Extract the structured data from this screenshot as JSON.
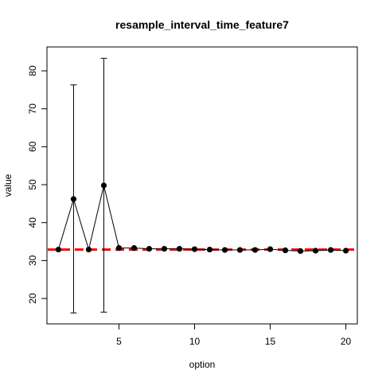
{
  "chart_data": {
    "type": "line",
    "title": "resample_interval_time_feature7",
    "xlabel": "option",
    "ylabel": "value",
    "xlim": [
      0.24,
      20.76
    ],
    "ylim": [
      13.3,
      86.3
    ],
    "x_ticks": [
      5,
      10,
      15,
      20
    ],
    "y_ticks": [
      20,
      30,
      40,
      50,
      60,
      70,
      80
    ],
    "grid": false,
    "series": [
      {
        "x": [
          1,
          2,
          3,
          4,
          5,
          6,
          7,
          8,
          9,
          10,
          11,
          12,
          13,
          14,
          15,
          16,
          17,
          18,
          19,
          20
        ],
        "y": [
          32.9,
          46.2,
          32.9,
          49.8,
          33.3,
          33.3,
          33.1,
          33.1,
          33.1,
          33.0,
          32.9,
          32.8,
          32.8,
          32.8,
          33.0,
          32.7,
          32.5,
          32.6,
          32.8,
          32.6
        ],
        "err_low": [
          null,
          16.2,
          null,
          16.4,
          null,
          null,
          null,
          null,
          null,
          null,
          null,
          null,
          null,
          null,
          null,
          null,
          null,
          null,
          null,
          null
        ],
        "err_high": [
          null,
          76.3,
          null,
          83.3,
          null,
          null,
          null,
          null,
          null,
          null,
          null,
          null,
          null,
          null,
          null,
          null,
          null,
          null,
          null,
          null
        ],
        "color": "#000000"
      }
    ],
    "reference_line": {
      "y": 32.9,
      "color": "#ff0000",
      "style": "dashed"
    }
  }
}
